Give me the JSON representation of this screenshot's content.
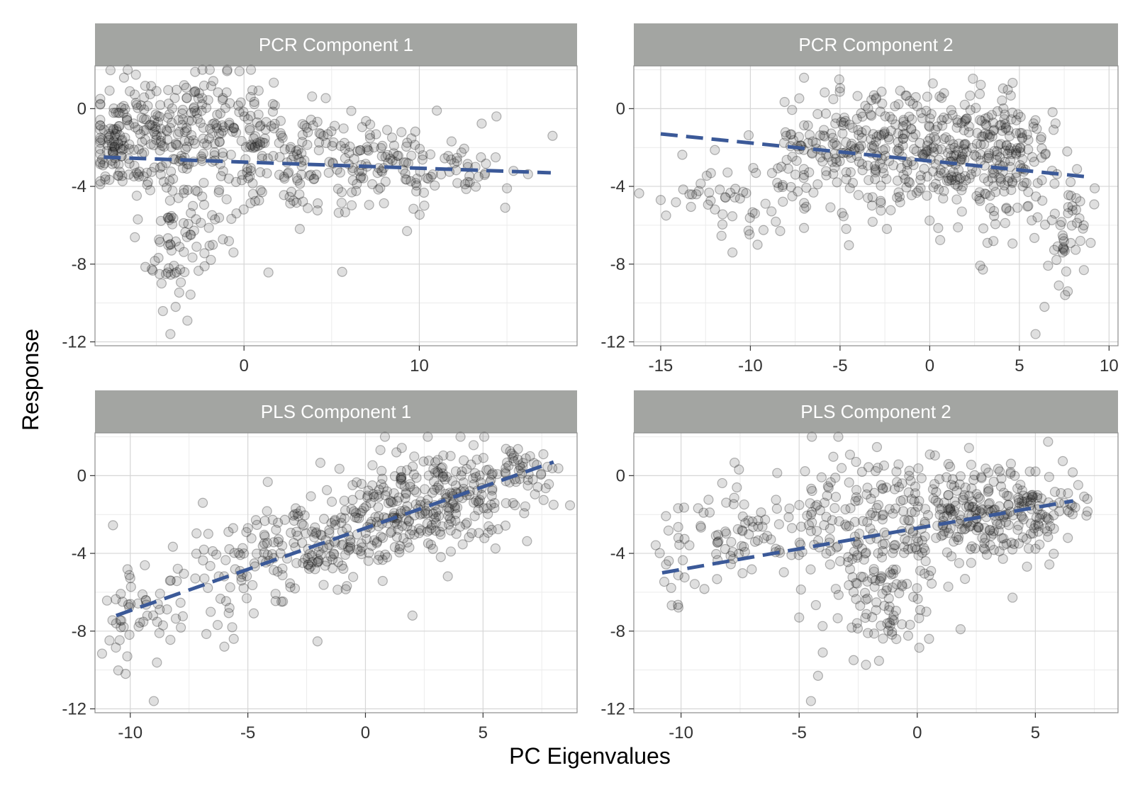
{
  "figure": {
    "ylabel": "Response",
    "xlabel": "PC Eigenvalues",
    "colors": {
      "panel_bg": "#ffffff",
      "strip_bg": "#a3a5a2",
      "strip_text": "#ffffff",
      "grid_major": "#d6d6d6",
      "grid_minor": "#ececec",
      "panel_border": "#8c8c8c",
      "points": "#1f1f1f",
      "fit_line": "#3b5998"
    }
  },
  "chart_data": [
    {
      "type": "scatter",
      "title": "PCR Component 1",
      "xlim": [
        -8.5,
        19
      ],
      "ylim": [
        -12.2,
        2.2
      ],
      "xticks": [
        0,
        10
      ],
      "xtick_labels": [
        "0",
        "10"
      ],
      "yticks": [
        0,
        -4,
        -8,
        -12
      ],
      "ytick_labels": [
        "0",
        "-4",
        "-8",
        "-12"
      ],
      "grid": true,
      "fit_line": {
        "x": [
          -8,
          17.5
        ],
        "y": [
          -2.5,
          -3.3
        ]
      },
      "clusters": [
        {
          "cx": -5.5,
          "cy": -1.5,
          "sx": 1.8,
          "sy": 1.6,
          "n": 160
        },
        {
          "cx": -7.4,
          "cy": -1.8,
          "sx": 0.5,
          "sy": 0.8,
          "n": 45
        },
        {
          "cx": -4.2,
          "cy": -7.0,
          "sx": 0.7,
          "sy": 1.6,
          "n": 45
        },
        {
          "cx": -2.2,
          "cy": -6.5,
          "sx": 1.0,
          "sy": 1.3,
          "n": 25
        },
        {
          "cx": -1.5,
          "cy": -1.0,
          "sx": 2.0,
          "sy": 1.5,
          "n": 120
        },
        {
          "cx": 3.0,
          "cy": -2.8,
          "sx": 2.8,
          "sy": 1.4,
          "n": 150
        },
        {
          "cx": 8.5,
          "cy": -3.0,
          "sx": 2.5,
          "sy": 1.1,
          "n": 90
        },
        {
          "cx": 13.0,
          "cy": -3.0,
          "sx": 1.5,
          "sy": 0.6,
          "n": 20
        }
      ],
      "points": [
        [
          -4.2,
          -11.6
        ],
        [
          -3.9,
          -10.2
        ],
        [
          17.6,
          -1.4
        ],
        [
          14.4,
          -0.4
        ],
        [
          15.0,
          -4.1
        ],
        [
          14.9,
          -5.1
        ],
        [
          11.0,
          -0.1
        ],
        [
          5.6,
          -8.4
        ],
        [
          9.3,
          -6.3
        ],
        [
          -0.6,
          -7.4
        ]
      ]
    },
    {
      "type": "scatter",
      "title": "PCR Component 2",
      "xlim": [
        -16.5,
        10.5
      ],
      "ylim": [
        -12.2,
        2.2
      ],
      "xticks": [
        -15,
        -10,
        -5,
        0,
        5,
        10
      ],
      "xtick_labels": [
        "-15",
        "-10",
        "-5",
        "0",
        "5",
        "10"
      ],
      "yticks": [
        0,
        -4,
        -8,
        -12
      ],
      "ytick_labels": [
        "0",
        "-4",
        "-8",
        "-12"
      ],
      "grid": true,
      "fit_line": {
        "x": [
          -15,
          8.7
        ],
        "y": [
          -1.3,
          -3.5
        ]
      },
      "clusters": [
        {
          "cx": 1.0,
          "cy": -2.2,
          "sx": 2.2,
          "sy": 1.6,
          "n": 220
        },
        {
          "cx": -3.5,
          "cy": -2.0,
          "sx": 2.2,
          "sy": 1.6,
          "n": 160
        },
        {
          "cx": 5.0,
          "cy": -3.0,
          "sx": 1.6,
          "sy": 1.8,
          "n": 120
        },
        {
          "cx": 7.6,
          "cy": -6.5,
          "sx": 0.5,
          "sy": 1.3,
          "n": 35
        },
        {
          "cx": -7.0,
          "cy": -2.8,
          "sx": 1.0,
          "sy": 1.4,
          "n": 45
        },
        {
          "cx": -11.0,
          "cy": -4.3,
          "sx": 2.4,
          "sy": 0.8,
          "n": 40
        },
        {
          "cx": -9.5,
          "cy": -6.0,
          "sx": 0.8,
          "sy": 0.9,
          "n": 10
        }
      ],
      "points": [
        [
          5.9,
          -11.6
        ],
        [
          6.4,
          -10.2
        ],
        [
          -15.0,
          -4.7
        ],
        [
          -14.7,
          -5.5
        ],
        [
          -11.0,
          -7.4
        ],
        [
          9.2,
          -4.1
        ],
        [
          -9.6,
          -7.0
        ],
        [
          7.2,
          -9.1
        ]
      ]
    },
    {
      "type": "scatter",
      "title": "PLS Component 1",
      "xlim": [
        -11.5,
        9
      ],
      "ylim": [
        -12.2,
        2.2
      ],
      "xticks": [
        -10,
        -5,
        0,
        5
      ],
      "xtick_labels": [
        "-10",
        "-5",
        "0",
        "5"
      ],
      "yticks": [
        0,
        -4,
        -8,
        -12
      ],
      "ytick_labels": [
        "0",
        "-4",
        "-8",
        "-12"
      ],
      "grid": true,
      "fit_line": {
        "x": [
          -10.6,
          8.0
        ],
        "y": [
          -7.2,
          0.7
        ]
      },
      "clusters": [
        {
          "cx": 3.5,
          "cy": -1.0,
          "sx": 1.8,
          "sy": 1.3,
          "n": 170
        },
        {
          "cx": 0.5,
          "cy": -2.4,
          "sx": 1.8,
          "sy": 1.3,
          "n": 160
        },
        {
          "cx": -3.0,
          "cy": -3.6,
          "sx": 1.6,
          "sy": 1.2,
          "n": 120
        },
        {
          "cx": 6.5,
          "cy": 0.2,
          "sx": 1.0,
          "sy": 0.7,
          "n": 40
        },
        {
          "cx": -6.0,
          "cy": -5.5,
          "sx": 1.4,
          "sy": 1.4,
          "n": 40
        },
        {
          "cx": -9.5,
          "cy": -7.0,
          "sx": 1.0,
          "sy": 1.4,
          "n": 45
        }
      ],
      "points": [
        [
          -9.0,
          -11.6
        ],
        [
          -10.2,
          -10.2
        ],
        [
          8.0,
          -1.5
        ],
        [
          7.0,
          1.0
        ],
        [
          2.0,
          -7.2
        ],
        [
          -5.6,
          -8.4
        ],
        [
          -6.0,
          -8.8
        ],
        [
          -10.6,
          -7.6
        ]
      ]
    },
    {
      "type": "scatter",
      "title": "PLS Component 2",
      "xlim": [
        -12,
        8.5
      ],
      "ylim": [
        -12.2,
        2.2
      ],
      "xticks": [
        -10,
        -5,
        0,
        5
      ],
      "xtick_labels": [
        "-10",
        "-5",
        "0",
        "5"
      ],
      "yticks": [
        0,
        -4,
        -8,
        -12
      ],
      "ytick_labels": [
        "0",
        "-4",
        "-8",
        "-12"
      ],
      "grid": true,
      "fit_line": {
        "x": [
          -10.8,
          6.6
        ],
        "y": [
          -5.0,
          -1.3
        ]
      },
      "clusters": [
        {
          "cx": 3.0,
          "cy": -1.8,
          "sx": 1.6,
          "sy": 1.3,
          "n": 180
        },
        {
          "cx": -0.5,
          "cy": -2.2,
          "sx": 2.0,
          "sy": 1.6,
          "n": 150
        },
        {
          "cx": -1.8,
          "cy": -6.5,
          "sx": 1.1,
          "sy": 1.4,
          "n": 80
        },
        {
          "cx": -4.0,
          "cy": -2.5,
          "sx": 1.8,
          "sy": 1.5,
          "n": 90
        },
        {
          "cx": -8.0,
          "cy": -3.0,
          "sx": 1.4,
          "sy": 1.2,
          "n": 60
        },
        {
          "cx": 5.5,
          "cy": -1.5,
          "sx": 1.0,
          "sy": 1.0,
          "n": 40
        },
        {
          "cx": -10.3,
          "cy": -5.6,
          "sx": 0.5,
          "sy": 0.9,
          "n": 12
        }
      ],
      "points": [
        [
          -4.5,
          -11.6
        ],
        [
          -4.2,
          -10.3
        ],
        [
          7.2,
          -1.2
        ],
        [
          -4.0,
          -9.1
        ],
        [
          0.5,
          -8.4
        ],
        [
          -1.0,
          -7.2
        ],
        [
          -5.0,
          -7.3
        ]
      ]
    }
  ]
}
